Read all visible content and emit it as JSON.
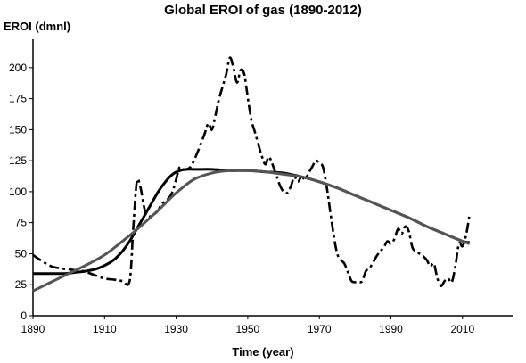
{
  "chart_data": {
    "type": "line",
    "title": "Global EROI of gas (1890-2012)",
    "ylabel": "EROI (dmnl)",
    "xlabel": "Time (year)",
    "xlim": [
      1890,
      2024
    ],
    "ylim": [
      0,
      220
    ],
    "xticks": [
      1890,
      1910,
      1930,
      1950,
      1970,
      1990,
      2010
    ],
    "yticks": [
      0,
      25,
      50,
      75,
      100,
      125,
      150,
      175,
      200
    ],
    "grid": false,
    "legend": "none",
    "series": [
      {
        "style": "dash-dot",
        "color": "#000000",
        "x": [
          1890,
          1892,
          1895,
          1898,
          1901,
          1904,
          1907,
          1910,
          1913,
          1915,
          1917,
          1918,
          1919,
          1920,
          1921,
          1922,
          1924,
          1925,
          1926,
          1928,
          1929,
          1930,
          1931,
          1932,
          1934,
          1936,
          1938,
          1939,
          1940,
          1941,
          1942,
          1943,
          1944,
          1945,
          1946,
          1947,
          1948,
          1949,
          1950,
          1951,
          1952,
          1954,
          1955,
          1956,
          1958,
          1959,
          1960,
          1961,
          1962,
          1963,
          1964,
          1965,
          1966,
          1967,
          1968,
          1969,
          1970,
          1971,
          1972,
          1973,
          1974,
          1975,
          1976,
          1977,
          1978,
          1979,
          1980,
          1981,
          1982,
          1983,
          1984,
          1985,
          1986,
          1987,
          1988,
          1989,
          1990,
          1991,
          1992,
          1993,
          1994,
          1995,
          1996,
          1997,
          1998,
          1999,
          2000,
          2001,
          2002,
          2003,
          2004,
          2005,
          2006,
          2007,
          2008,
          2009,
          2010,
          2011,
          2012
        ],
        "y": [
          49,
          45,
          40,
          38,
          37,
          36,
          33,
          30,
          29,
          28,
          28,
          70,
          108,
          104,
          88,
          80,
          82,
          85,
          90,
          95,
          100,
          110,
          120,
          118,
          120,
          132,
          147,
          155,
          150,
          162,
          175,
          185,
          195,
          208,
          200,
          188,
          198,
          195,
          176,
          158,
          148,
          128,
          122,
          128,
          113,
          105,
          100,
          99,
          104,
          112,
          108,
          112,
          110,
          115,
          120,
          125,
          123,
          120,
          105,
          85,
          65,
          50,
          45,
          42,
          35,
          28,
          27,
          27,
          28,
          36,
          38,
          43,
          48,
          52,
          55,
          60,
          58,
          62,
          70,
          66,
          72,
          68,
          55,
          52,
          50,
          48,
          45,
          40,
          42,
          30,
          24,
          28,
          30,
          27,
          40,
          58,
          56,
          65,
          82
        ]
      },
      {
        "style": "solid",
        "color": "#000000",
        "x": [
          1890,
          1893,
          1896,
          1899,
          1902,
          1905,
          1908,
          1911,
          1913,
          1915,
          1917,
          1919,
          1921,
          1923,
          1925,
          1927,
          1929,
          1931,
          1933,
          1936,
          1940,
          1945,
          1950,
          1955,
          1960,
          1965,
          1970,
          1975,
          1980,
          1985,
          1990,
          1995,
          2000,
          2005,
          2010,
          2012
        ],
        "y": [
          34,
          34,
          34,
          34,
          35,
          36,
          38,
          42,
          46,
          52,
          60,
          70,
          80,
          90,
          100,
          108,
          114,
          117,
          118,
          118,
          118,
          117,
          117,
          116,
          115,
          112,
          108,
          103,
          97,
          91,
          85,
          79,
          72,
          66,
          60,
          59
        ]
      },
      {
        "style": "solid",
        "color": "#555555",
        "x": [
          1890,
          1895,
          1900,
          1905,
          1910,
          1915,
          1920,
          1925,
          1930,
          1935,
          1940,
          1945,
          1950,
          1955,
          1960,
          1965,
          1970,
          1975,
          1980,
          1985,
          1990,
          1995,
          2000,
          2005,
          2010,
          2012
        ],
        "y": [
          20,
          27,
          34,
          41,
          49,
          60,
          72,
          85,
          99,
          110,
          115,
          117,
          117,
          116,
          114,
          112,
          108,
          103,
          97,
          91,
          85,
          79,
          72,
          66,
          60,
          58
        ]
      }
    ]
  }
}
